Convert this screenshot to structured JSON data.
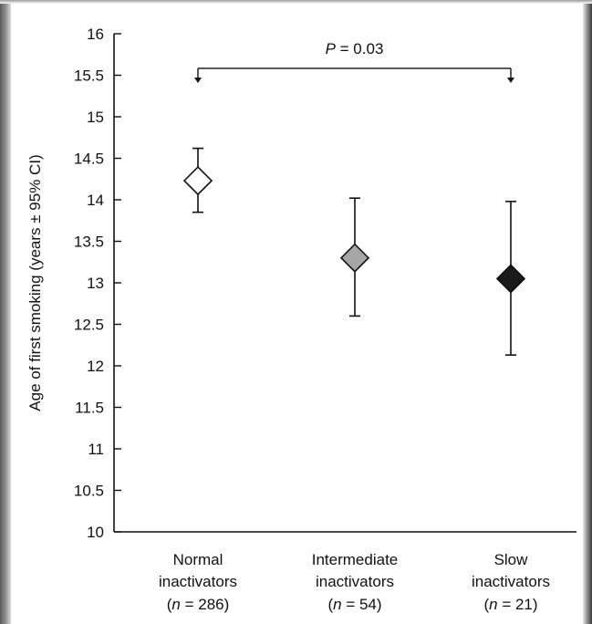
{
  "chart_data": {
    "type": "scatter",
    "ylabel": "Age of first smoking (years ± 95% CI)",
    "ylim": [
      10,
      16
    ],
    "yticks": [
      "10",
      "10.5",
      "11",
      "11.5",
      "12",
      "12.5",
      "13",
      "13.5",
      "14",
      "14.5",
      "15",
      "15.5",
      "16"
    ],
    "categories": [
      {
        "name": "Normal",
        "sub": "inactivators",
        "n_text": "(n = 286)",
        "n_var": "n",
        "n_rest": " = 286)"
      },
      {
        "name": "Intermediate",
        "sub": "inactivators",
        "n_text": "(n = 54)",
        "n_var": "n",
        "n_rest": " = 54)"
      },
      {
        "name": "Slow",
        "sub": "inactivators",
        "n_text": "(n = 21)",
        "n_var": "n",
        "n_rest": " = 21)"
      }
    ],
    "points": [
      {
        "category": "Normal inactivators",
        "y": 14.23,
        "ci_low": 13.85,
        "ci_high": 14.62,
        "marker_fill": "#ffffff"
      },
      {
        "category": "Intermediate inactivators",
        "y": 13.3,
        "ci_low": 12.6,
        "ci_high": 14.02,
        "marker_fill": "#a6a6a6"
      },
      {
        "category": "Slow inactivators",
        "y": 13.05,
        "ci_low": 12.13,
        "ci_high": 13.98,
        "marker_fill": "#1a1a1a"
      }
    ],
    "significance": {
      "from_category": 0,
      "to_category": 2,
      "y": 15.55,
      "label_var": "P",
      "label_rest": " = 0.03"
    },
    "grid": false,
    "legend": "none"
  }
}
